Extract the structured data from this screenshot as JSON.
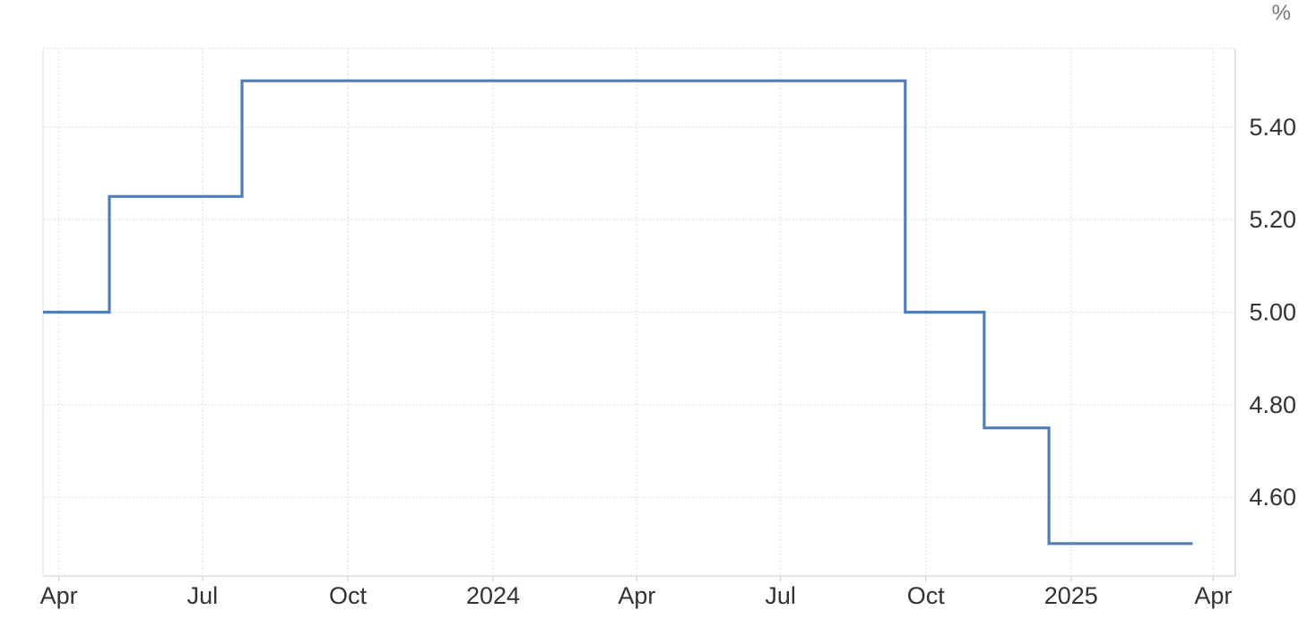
{
  "chart_data": {
    "type": "line",
    "interpolation": "step-after",
    "title": "",
    "xlabel": "",
    "ylabel": "",
    "unit_label": "%",
    "colors": {
      "line": "#4f7fba",
      "grid": "#e2e2e2",
      "axis": "#cccccc",
      "text": "#333333"
    },
    "grid": true,
    "y_axis_side": "right",
    "xlim": [
      "2023-03-22",
      "2025-04-15"
    ],
    "ylim": [
      4.43,
      5.57
    ],
    "x_ticks": [
      {
        "date": "2023-04-01",
        "label": "Apr"
      },
      {
        "date": "2023-07-01",
        "label": "Jul"
      },
      {
        "date": "2023-10-01",
        "label": "Oct"
      },
      {
        "date": "2024-01-01",
        "label": "2024"
      },
      {
        "date": "2024-04-01",
        "label": "Apr"
      },
      {
        "date": "2024-07-01",
        "label": "Jul"
      },
      {
        "date": "2024-10-01",
        "label": "Oct"
      },
      {
        "date": "2025-01-01",
        "label": "2025"
      },
      {
        "date": "2025-04-01",
        "label": "Apr"
      }
    ],
    "y_ticks": [
      {
        "value": 4.6,
        "label": "4.60"
      },
      {
        "value": 4.8,
        "label": "4.80"
      },
      {
        "value": 5.0,
        "label": "5.00"
      },
      {
        "value": 5.2,
        "label": "5.20"
      },
      {
        "value": 5.4,
        "label": "5.40"
      }
    ],
    "series": [
      {
        "points": [
          {
            "x": "2023-03-22",
            "y": 5.0
          },
          {
            "x": "2023-05-03",
            "y": 5.25
          },
          {
            "x": "2023-07-26",
            "y": 5.5
          },
          {
            "x": "2024-09-18",
            "y": 5.0
          },
          {
            "x": "2024-11-07",
            "y": 4.75
          },
          {
            "x": "2024-12-18",
            "y": 4.5
          },
          {
            "x": "2025-03-19",
            "y": 4.5
          }
        ]
      }
    ]
  }
}
